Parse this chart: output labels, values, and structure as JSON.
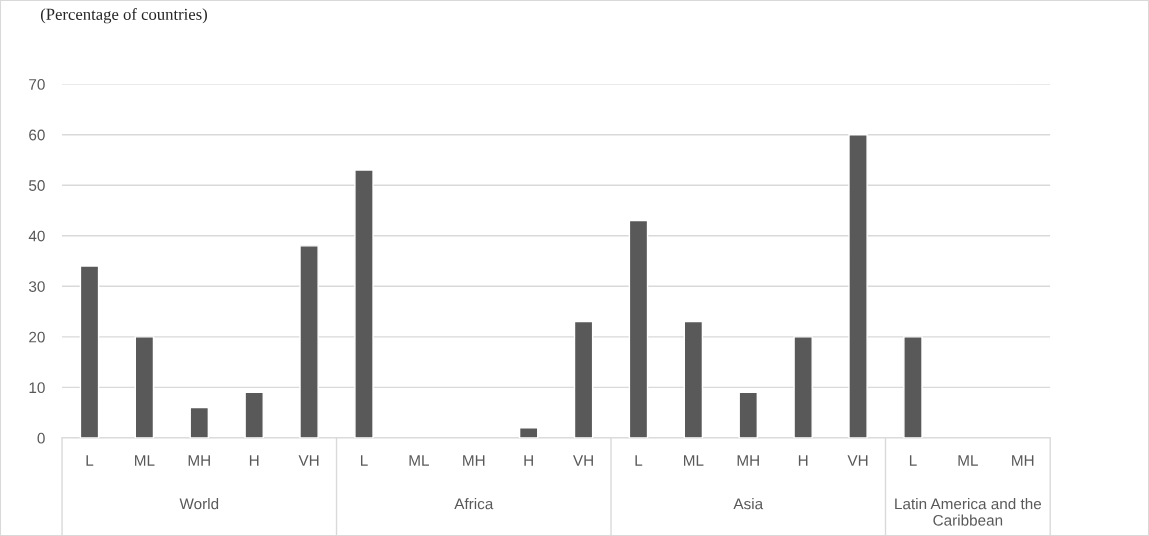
{
  "chart_data": {
    "type": "bar",
    "title": "(Percentage of countries)",
    "categories": [
      "L",
      "ML",
      "MH",
      "H",
      "VH",
      "L",
      "ML",
      "MH",
      "H",
      "VH",
      "L",
      "ML",
      "MH",
      "H",
      "VH",
      "L",
      "ML",
      "MH"
    ],
    "values": [
      34,
      20,
      6,
      9,
      38,
      53,
      null,
      null,
      2,
      23,
      43,
      23,
      9,
      20,
      60,
      20,
      null,
      null
    ],
    "color": "#595959",
    "ylim": [
      0,
      70
    ],
    "yticks": [
      0,
      10,
      20,
      30,
      40,
      50,
      60,
      70
    ],
    "grid": "y",
    "annotations": [
      "World",
      "Africa",
      "Asia",
      "Latin America and the Caribbean"
    ]
  }
}
